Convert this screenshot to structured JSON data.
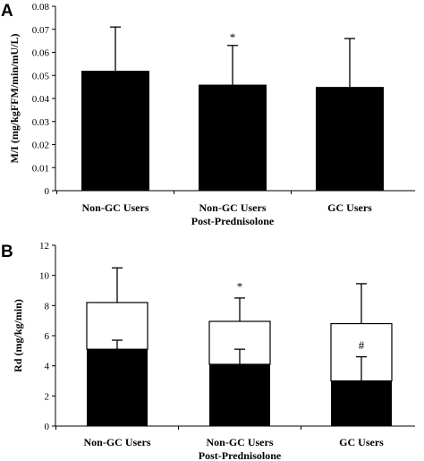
{
  "colors": {
    "bar_dark": "#000000",
    "bar_light": "#ffffff",
    "axis": "#000000"
  },
  "chart_data": [
    {
      "panel_label": "A",
      "type": "bar",
      "categories": [
        "Non-GC Users",
        "Non-GC Users\nPost-Prednisolone",
        "GC Users"
      ],
      "values": [
        0.052,
        0.046,
        0.045
      ],
      "error_upper": [
        0.071,
        0.063,
        0.066
      ],
      "annotations": [
        "",
        "*",
        ""
      ],
      "ylabel": "M/I (mg/kgFFM/min/mU/L)",
      "ylim": [
        0,
        0.08
      ],
      "yticks": [
        "0",
        "0.01",
        "0.02",
        "0.03",
        "0.04",
        "0.05",
        "0.06",
        "0.07",
        "0.08"
      ],
      "grid": false
    },
    {
      "panel_label": "B",
      "type": "bar",
      "stacked": true,
      "categories": [
        "Non-GC Users",
        "Non-GC Users\nPost-Prednisolone",
        "GC Users"
      ],
      "series": [
        {
          "values": [
            5.1,
            4.1,
            3.0
          ],
          "error_upper": [
            5.7,
            5.1,
            4.6
          ],
          "color": "#000000"
        },
        {
          "values": [
            3.1,
            2.85,
            3.8
          ],
          "error_upper": [
            10.5,
            8.5,
            9.45
          ],
          "color": "#ffffff"
        }
      ],
      "totals": [
        8.2,
        6.95,
        6.8
      ],
      "annotations": [
        {
          "text": "",
          "value": 0
        },
        {
          "text": "*",
          "value": 9.3
        },
        {
          "text": "#",
          "value": 5.4
        }
      ],
      "ylabel": "Rd (mg/kg/min)",
      "ylim": [
        0,
        12
      ],
      "yticks": [
        "0",
        "2",
        "4",
        "6",
        "8",
        "10",
        "12"
      ],
      "grid": false
    }
  ]
}
